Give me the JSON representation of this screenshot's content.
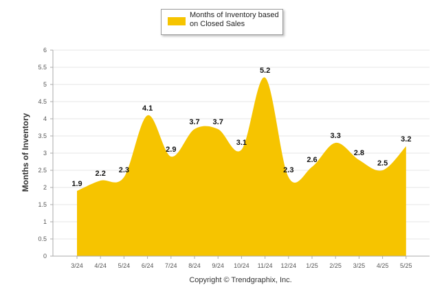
{
  "chart_data": {
    "type": "area",
    "title": "",
    "xlabel": "",
    "ylabel": "Months of Inventory",
    "categories": [
      "3/24",
      "4/24",
      "5/24",
      "6/24",
      "7/24",
      "8/24",
      "9/24",
      "10/24",
      "11/24",
      "12/24",
      "1/25",
      "2/25",
      "3/25",
      "4/25",
      "5/25"
    ],
    "series": [
      {
        "name": "Months of Inventory based on Closed Sales",
        "values": [
          1.9,
          2.2,
          2.3,
          4.1,
          2.9,
          3.7,
          3.7,
          3.1,
          5.2,
          2.3,
          2.6,
          3.3,
          2.8,
          2.5,
          3.2
        ],
        "labels": [
          "1.9",
          "2.2",
          "2.3",
          "4.1",
          "2.9",
          "3.7",
          "3.7",
          "3.1",
          "5.2",
          "2.3",
          "2.6",
          "3.3",
          "2.8",
          "2.5",
          "3.2"
        ]
      }
    ],
    "ylim": [
      0,
      6
    ],
    "yticks": [
      "0",
      "0.5",
      "1",
      "1.5",
      "2",
      "2.5",
      "3",
      "3.5",
      "4",
      "4.5",
      "5",
      "5.5",
      "6"
    ],
    "grid": true,
    "legend_position": "top-center",
    "colors": {
      "fill": "#F6C400",
      "grid": "#e6e6e6",
      "axis": "#aaaaaa"
    }
  },
  "legend": {
    "label": "Months of Inventory based on Closed Sales"
  },
  "footer": {
    "copyright": "Copyright © Trendgraphix, Inc."
  }
}
